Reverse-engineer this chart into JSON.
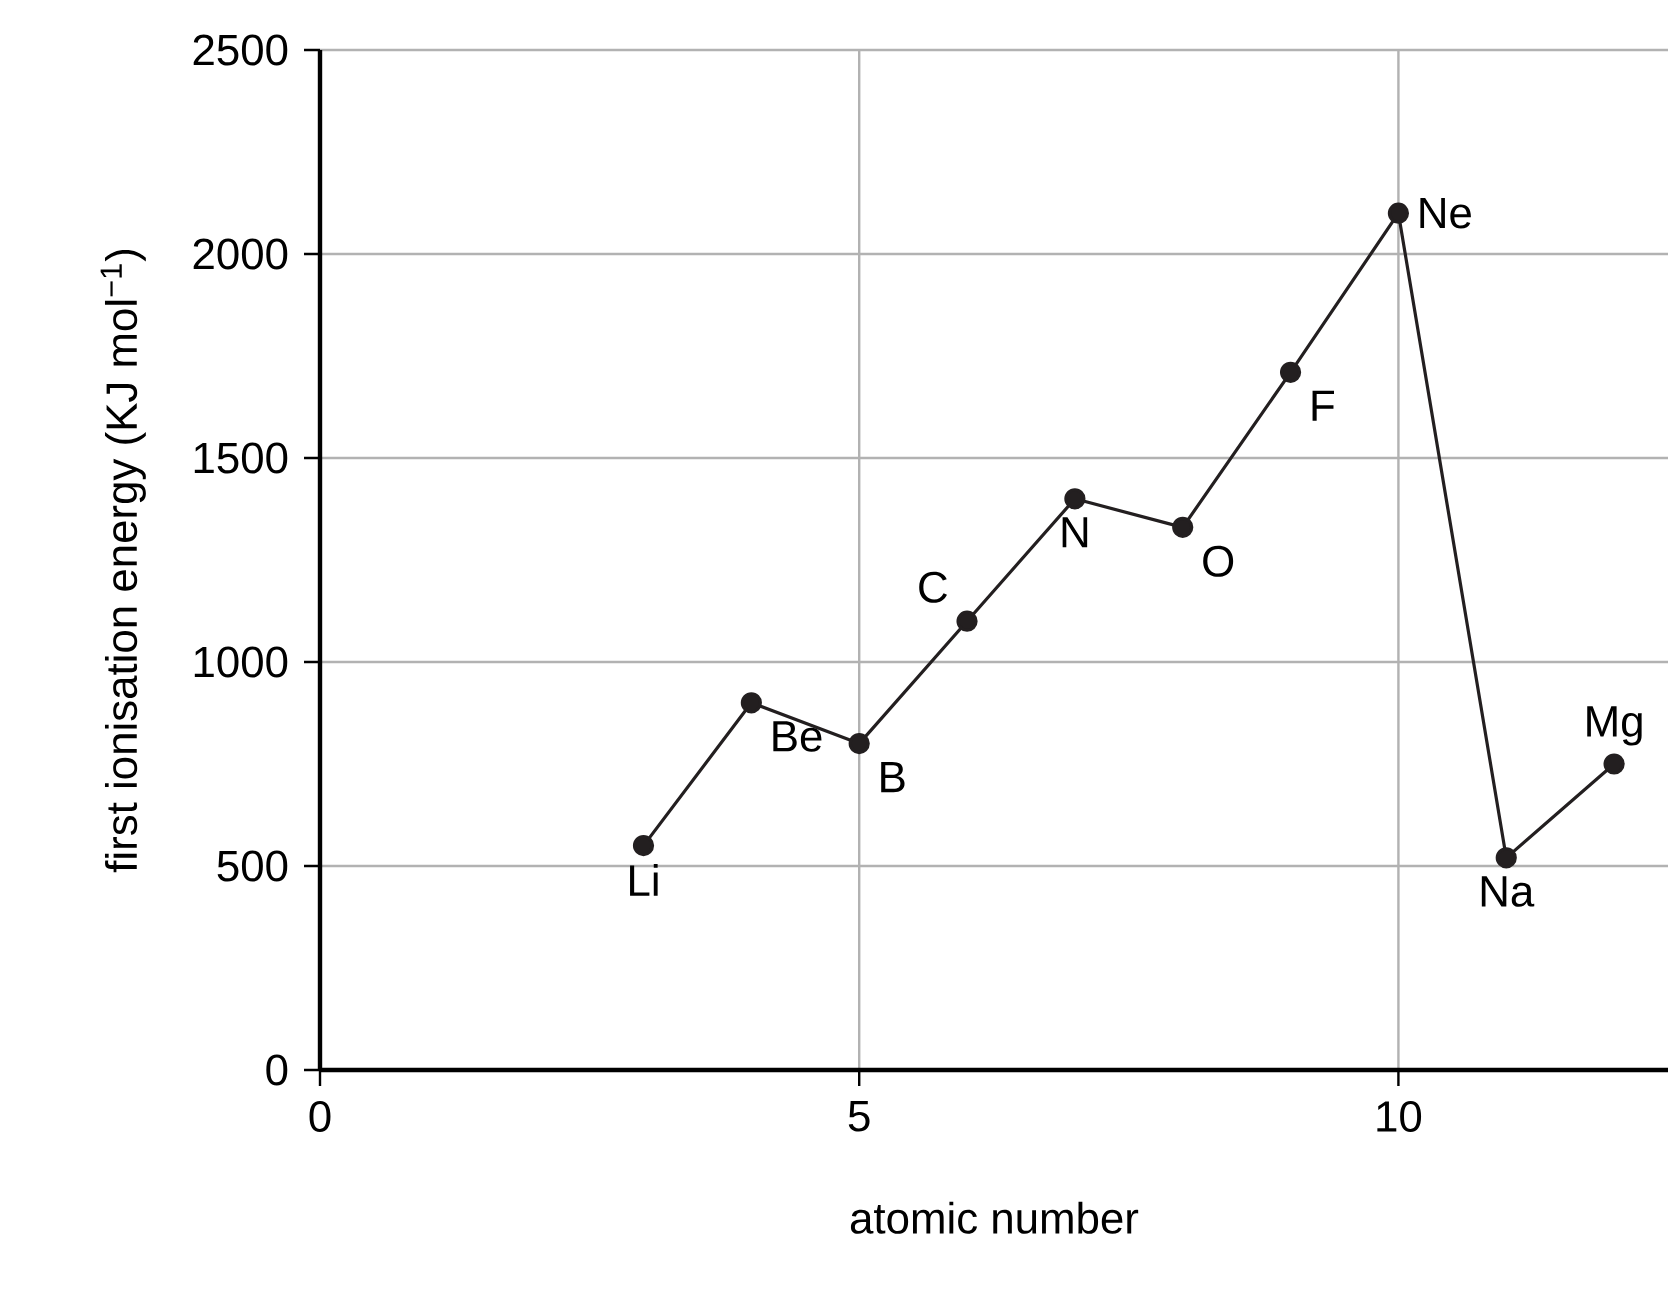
{
  "chart_data": {
    "type": "line",
    "xlabel": "atomic number",
    "ylabel": "first ionisation energy (KJ mol$^{−1}$)",
    "x": [
      3,
      4,
      5,
      6,
      7,
      8,
      9,
      10,
      11,
      12
    ],
    "values": [
      550,
      900,
      800,
      1100,
      1400,
      1330,
      1710,
      2100,
      520,
      750
    ],
    "color": "#231f20",
    "marker": "circle",
    "line_style": "solid",
    "grid": true,
    "xlim": [
      0,
      12.5
    ],
    "xticks": [
      0,
      5,
      10
    ],
    "ylim": [
      0,
      2500
    ],
    "yticks": [
      0,
      500,
      1000,
      1500,
      2000,
      2500
    ],
    "annotations": [
      {
        "text": "Li",
        "x": 3,
        "y": 550
      },
      {
        "text": "Be",
        "x": 4,
        "y": 900
      },
      {
        "text": "B",
        "x": 5,
        "y": 800
      },
      {
        "text": "C",
        "x": 6,
        "y": 1100
      },
      {
        "text": "N",
        "x": 7,
        "y": 1400
      },
      {
        "text": "O",
        "x": 8,
        "y": 1330
      },
      {
        "text": "F",
        "x": 9,
        "y": 1710
      },
      {
        "text": "Ne",
        "x": 10,
        "y": 2100
      },
      {
        "text": "Na",
        "x": 11,
        "y": 520
      },
      {
        "text": "Mg",
        "x": 12,
        "y": 750
      }
    ]
  }
}
